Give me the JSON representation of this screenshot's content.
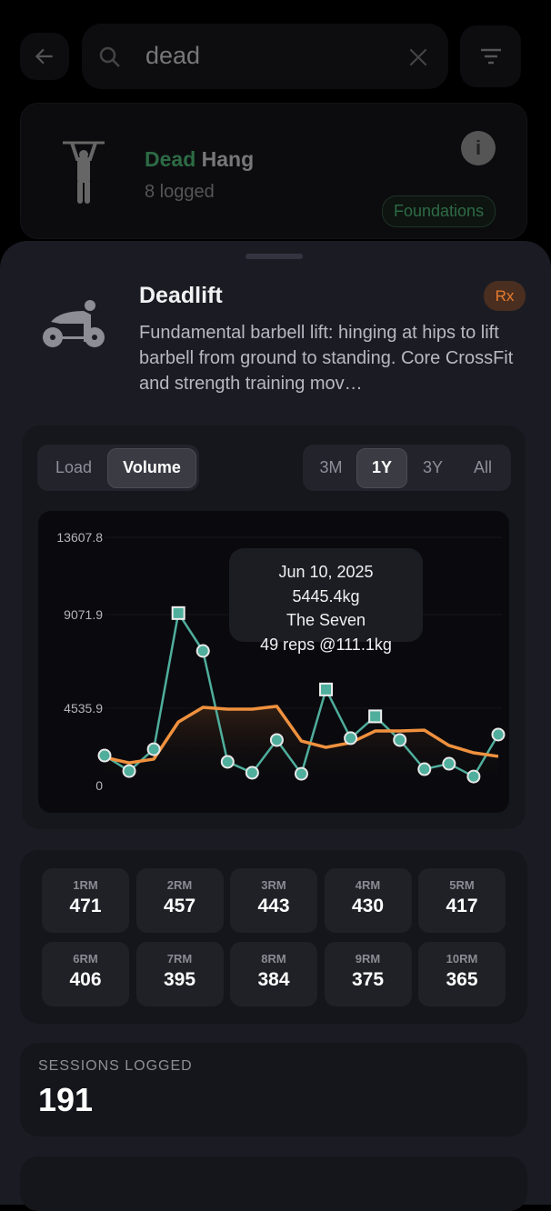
{
  "search": {
    "query": "dead"
  },
  "result": {
    "name_match": "Dead",
    "name_rest": " Hang",
    "logged": "8 logged",
    "tag": "Foundations"
  },
  "exercise": {
    "title": "Deadlift",
    "badge": "Rx",
    "description": "Fundamental barbell lift: hinging at hips to lift barbell from ground to standing. Core CrossFit and strength training mov…"
  },
  "chart_toggle": {
    "metrics": [
      "Load",
      "Volume"
    ],
    "active_metric": "Volume",
    "ranges": [
      "3M",
      "1Y",
      "3Y",
      "All"
    ],
    "active_range": "1Y"
  },
  "tooltip": {
    "date": "Jun 10, 2025",
    "value": "5445.4kg",
    "workout": "The Seven",
    "detail": "49 reps @111.1kg"
  },
  "chart_data": {
    "type": "line",
    "y_ticks": [
      "13607.8",
      "9071.9",
      "4535.9",
      "0"
    ],
    "ylim": [
      0,
      13607.8
    ],
    "colors": {
      "volume": "#4fae9c",
      "average": "#f0913e"
    },
    "series": [
      {
        "name": "Volume",
        "values": [
          1760,
          850,
          2130,
          9160,
          7310,
          1390,
          750,
          2670,
          690,
          5445.4,
          2780,
          4060,
          2670,
          960,
          1280,
          530,
          2990
        ],
        "pr_indices": [
          3,
          9,
          11
        ]
      },
      {
        "name": "Moving average",
        "values": [
          1650,
          1330,
          1550,
          3730,
          4580,
          4480,
          4480,
          4630,
          2610,
          2240,
          2510,
          3200,
          3200,
          3250,
          2350,
          1920,
          1710
        ]
      }
    ]
  },
  "rm": [
    {
      "label": "1RM",
      "value": "471"
    },
    {
      "label": "2RM",
      "value": "457"
    },
    {
      "label": "3RM",
      "value": "443"
    },
    {
      "label": "4RM",
      "value": "430"
    },
    {
      "label": "5RM",
      "value": "417"
    },
    {
      "label": "6RM",
      "value": "406"
    },
    {
      "label": "7RM",
      "value": "395"
    },
    {
      "label": "8RM",
      "value": "384"
    },
    {
      "label": "9RM",
      "value": "375"
    },
    {
      "label": "10RM",
      "value": "365"
    }
  ],
  "sessions": {
    "label": "SESSIONS LOGGED",
    "value": "191"
  }
}
